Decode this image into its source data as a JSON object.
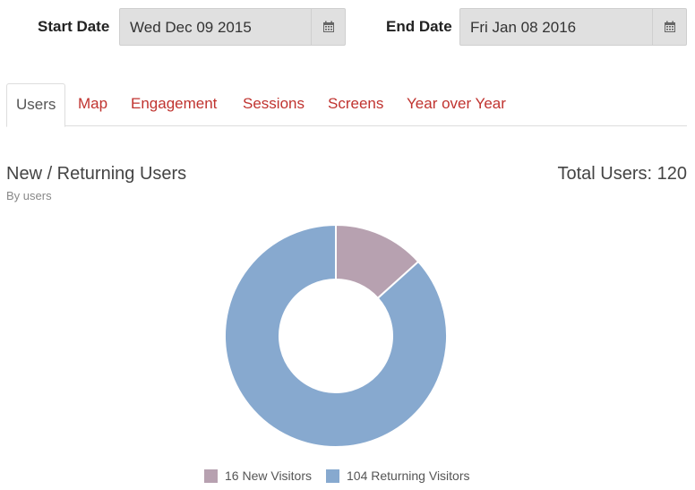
{
  "filters": {
    "start_label": "Start Date",
    "start_value": "Wed Dec 09 2015",
    "end_label": "End Date",
    "end_value": "Fri Jan 08 2016",
    "calendar_icon": "calendar-icon"
  },
  "tabs": [
    {
      "label": "Users",
      "active": true
    },
    {
      "label": "Map",
      "active": false
    },
    {
      "label": "Engagement",
      "active": false
    },
    {
      "label": "Sessions",
      "active": false
    },
    {
      "label": "Screens",
      "active": false
    },
    {
      "label": "Year over Year",
      "active": false
    }
  ],
  "panel": {
    "title": "New / Returning Users",
    "subtitle": "By users",
    "total": "Total Users: 120"
  },
  "colors": {
    "accent": "#c0332f",
    "new_visitors": "#b7a1b0",
    "returning_visitors": "#87a9cf"
  },
  "chart_data": {
    "type": "pie",
    "donut": true,
    "title": "New / Returning Users",
    "subtitle": "By users",
    "categories": [
      "New Visitors",
      "Returning Visitors"
    ],
    "values": [
      16,
      104
    ],
    "colors": [
      "#b7a1b0",
      "#87a9cf"
    ],
    "legend_placement": "bottom",
    "legend": [
      "16 New Visitors",
      "104 Returning Visitors"
    ]
  }
}
